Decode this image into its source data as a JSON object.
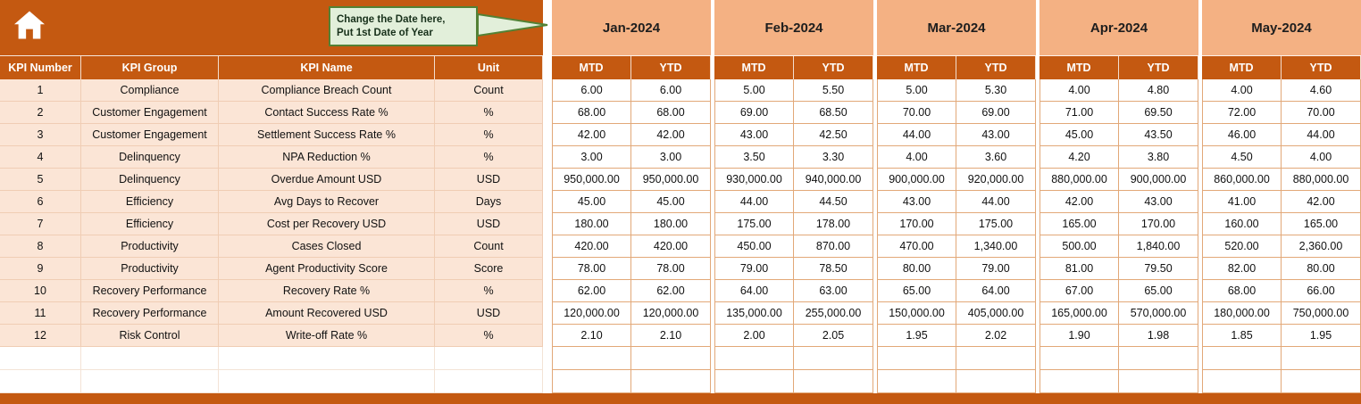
{
  "banner": {
    "callout_line1": "Change the Date here,",
    "callout_line2": "Put 1st Date of Year"
  },
  "months": [
    "Jan-2024",
    "Feb-2024",
    "Mar-2024",
    "Apr-2024",
    "May-2024"
  ],
  "column_headers": [
    "KPI Number",
    "KPI Group",
    "KPI Name",
    "Unit"
  ],
  "period_headers": [
    "MTD",
    "YTD"
  ],
  "rows": [
    {
      "kpi_number": "1",
      "kpi_group": "Compliance",
      "kpi_name": "Compliance Breach Count",
      "unit": "Count",
      "values": [
        "6.00",
        "6.00",
        "5.00",
        "5.50",
        "5.00",
        "5.30",
        "4.00",
        "4.80",
        "4.00",
        "4.60"
      ]
    },
    {
      "kpi_number": "2",
      "kpi_group": "Customer Engagement",
      "kpi_name": "Contact Success Rate %",
      "unit": "%",
      "values": [
        "68.00",
        "68.00",
        "69.00",
        "68.50",
        "70.00",
        "69.00",
        "71.00",
        "69.50",
        "72.00",
        "70.00"
      ]
    },
    {
      "kpi_number": "3",
      "kpi_group": "Customer Engagement",
      "kpi_name": "Settlement Success Rate %",
      "unit": "%",
      "values": [
        "42.00",
        "42.00",
        "43.00",
        "42.50",
        "44.00",
        "43.00",
        "45.00",
        "43.50",
        "46.00",
        "44.00"
      ]
    },
    {
      "kpi_number": "4",
      "kpi_group": "Delinquency",
      "kpi_name": "NPA Reduction %",
      "unit": "%",
      "values": [
        "3.00",
        "3.00",
        "3.50",
        "3.30",
        "4.00",
        "3.60",
        "4.20",
        "3.80",
        "4.50",
        "4.00"
      ]
    },
    {
      "kpi_number": "5",
      "kpi_group": "Delinquency",
      "kpi_name": "Overdue Amount USD",
      "unit": "USD",
      "values": [
        "950,000.00",
        "950,000.00",
        "930,000.00",
        "940,000.00",
        "900,000.00",
        "920,000.00",
        "880,000.00",
        "900,000.00",
        "860,000.00",
        "880,000.00"
      ]
    },
    {
      "kpi_number": "6",
      "kpi_group": "Efficiency",
      "kpi_name": "Avg Days to Recover",
      "unit": "Days",
      "values": [
        "45.00",
        "45.00",
        "44.00",
        "44.50",
        "43.00",
        "44.00",
        "42.00",
        "43.00",
        "41.00",
        "42.00"
      ]
    },
    {
      "kpi_number": "7",
      "kpi_group": "Efficiency",
      "kpi_name": "Cost per Recovery USD",
      "unit": "USD",
      "values": [
        "180.00",
        "180.00",
        "175.00",
        "178.00",
        "170.00",
        "175.00",
        "165.00",
        "170.00",
        "160.00",
        "165.00"
      ]
    },
    {
      "kpi_number": "8",
      "kpi_group": "Productivity",
      "kpi_name": "Cases Closed",
      "unit": "Count",
      "values": [
        "420.00",
        "420.00",
        "450.00",
        "870.00",
        "470.00",
        "1,340.00",
        "500.00",
        "1,840.00",
        "520.00",
        "2,360.00"
      ]
    },
    {
      "kpi_number": "9",
      "kpi_group": "Productivity",
      "kpi_name": "Agent Productivity Score",
      "unit": "Score",
      "values": [
        "78.00",
        "78.00",
        "79.00",
        "78.50",
        "80.00",
        "79.00",
        "81.00",
        "79.50",
        "82.00",
        "80.00"
      ]
    },
    {
      "kpi_number": "10",
      "kpi_group": "Recovery Performance",
      "kpi_name": "Recovery Rate %",
      "unit": "%",
      "values": [
        "62.00",
        "62.00",
        "64.00",
        "63.00",
        "65.00",
        "64.00",
        "67.00",
        "65.00",
        "68.00",
        "66.00"
      ]
    },
    {
      "kpi_number": "11",
      "kpi_group": "Recovery Performance",
      "kpi_name": "Amount Recovered USD",
      "unit": "USD",
      "values": [
        "120,000.00",
        "120,000.00",
        "135,000.00",
        "255,000.00",
        "150,000.00",
        "405,000.00",
        "165,000.00",
        "570,000.00",
        "180,000.00",
        "750,000.00"
      ]
    },
    {
      "kpi_number": "12",
      "kpi_group": "Risk Control",
      "kpi_name": "Write-off Rate %",
      "unit": "%",
      "values": [
        "2.10",
        "2.10",
        "2.00",
        "2.05",
        "1.95",
        "2.02",
        "1.90",
        "1.98",
        "1.85",
        "1.95"
      ]
    }
  ],
  "empty_rows": 2,
  "colors": {
    "accent": "#C45911",
    "month_fill": "#F4B183",
    "left_fill": "#FBE5D6",
    "grid_line": "#E2A878",
    "callout_fill": "#E2EFDA",
    "callout_border": "#538135"
  }
}
